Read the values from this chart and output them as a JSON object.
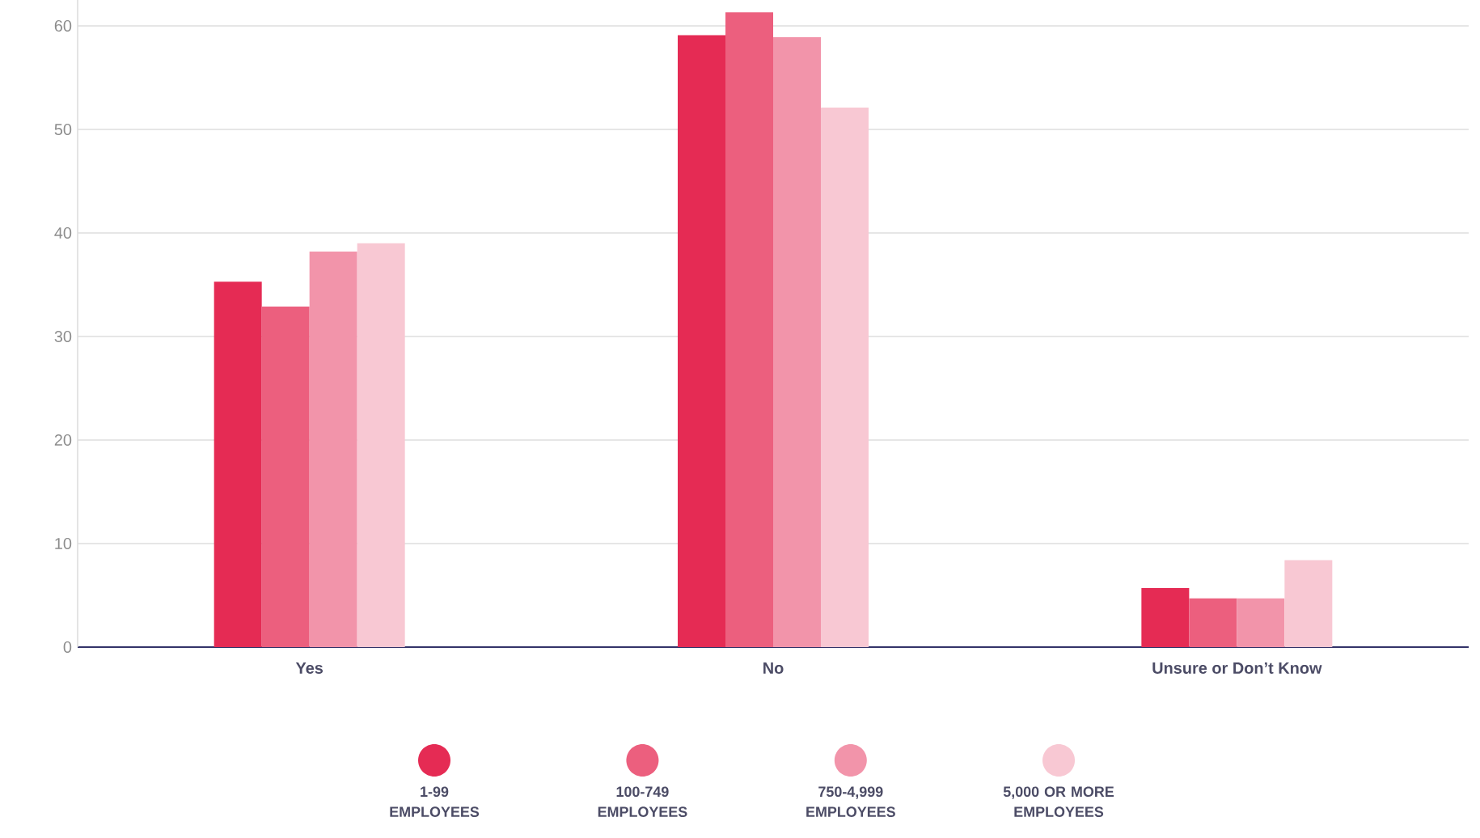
{
  "chart_data": {
    "type": "bar",
    "categories": [
      "Yes",
      "No",
      "Unsure or Don’t Know"
    ],
    "series": [
      {
        "name": "1-99 EMPLOYEES",
        "color": "#e52b54",
        "values": [
          35.3,
          59.1,
          5.7
        ]
      },
      {
        "name": "100-749 EMPLOYEES",
        "color": "#ec5f7e",
        "values": [
          32.9,
          61.3,
          4.7
        ]
      },
      {
        "name": "750-4,999 EMPLOYEES",
        "color": "#f294aa",
        "values": [
          38.2,
          58.9,
          4.7
        ]
      },
      {
        "name": "5,000 OR MORE EMPLOYEES",
        "color": "#f8c8d3",
        "values": [
          39.0,
          52.1,
          8.4
        ]
      }
    ],
    "ylim": [
      0,
      62.5
    ],
    "yticks": [
      0,
      10,
      20,
      30,
      40,
      50,
      60
    ],
    "grid": "y",
    "legend": "bottom"
  }
}
